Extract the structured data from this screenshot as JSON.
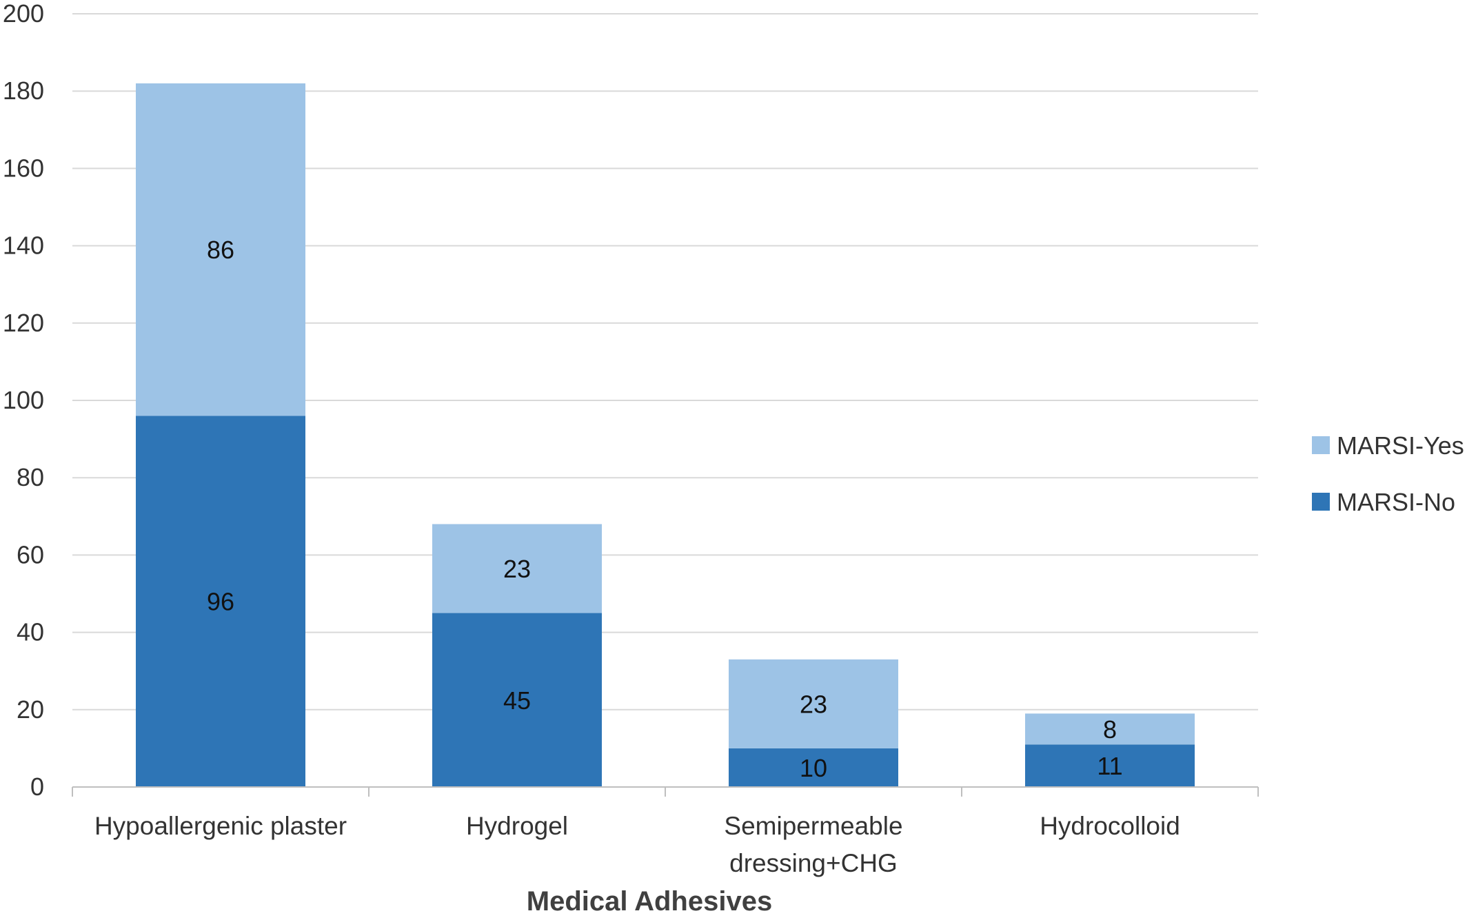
{
  "chart_data": {
    "type": "bar",
    "stacked": true,
    "title": "",
    "xlabel": "Medical Adhesives",
    "ylabel": "",
    "ylim": [
      0,
      200
    ],
    "yticks": [
      0,
      20,
      40,
      60,
      80,
      100,
      120,
      140,
      160,
      180,
      200
    ],
    "grid": true,
    "legend_position": "right",
    "categories": [
      [
        "Hypoallergenic plaster"
      ],
      [
        "Hydrogel"
      ],
      [
        "Semipermeable",
        "dressing+CHG"
      ],
      [
        "Hydrocolloid"
      ]
    ],
    "series": [
      {
        "name": "MARSI-No",
        "color": "#2E75B6",
        "values": [
          96,
          45,
          10,
          11
        ]
      },
      {
        "name": "MARSI-Yes",
        "color": "#9DC3E6",
        "values": [
          86,
          23,
          23,
          8
        ]
      }
    ]
  }
}
